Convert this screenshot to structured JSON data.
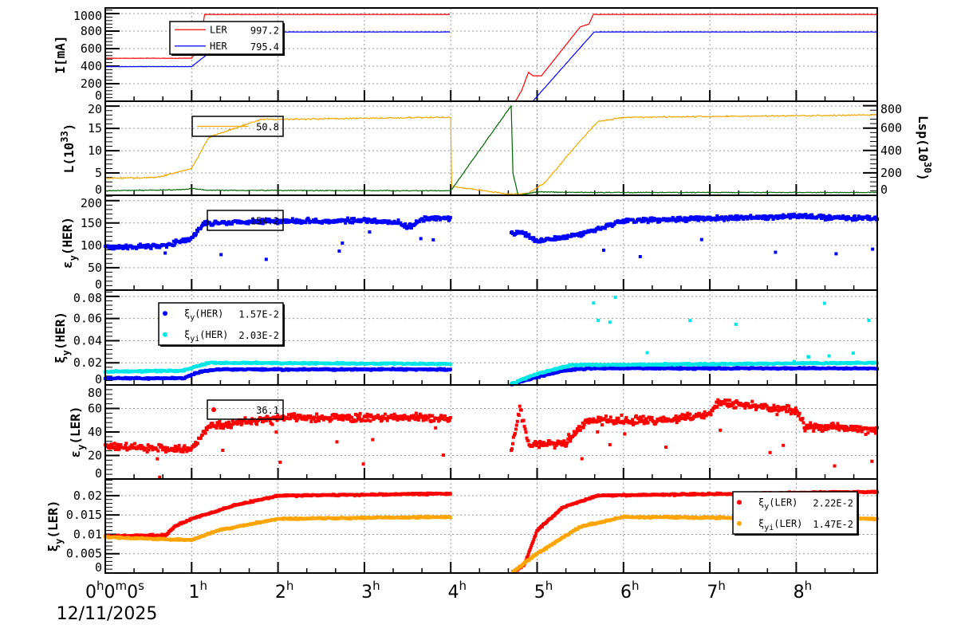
{
  "chart_data": {
    "type": "multi-panel time series",
    "x_axis": {
      "unit": "hours",
      "range": [
        0,
        8.94
      ],
      "tick_labels": [
        {
          "h": "0",
          "m": "0",
          "s": "0"
        },
        {
          "h": "1"
        },
        {
          "h": "2"
        },
        {
          "h": "3"
        },
        {
          "h": "4"
        },
        {
          "h": "5"
        },
        {
          "h": "6"
        },
        {
          "h": "7"
        },
        {
          "h": "8"
        }
      ],
      "date": "12/11/2025",
      "grid": true
    },
    "panels": [
      {
        "ylabel": {
          "main": "I[mA]",
          "sub": "",
          "sup": "",
          "rest": ""
        },
        "ylim": [
          0,
          1064
        ],
        "yticks": [
          "0",
          "200",
          "400",
          "600",
          "800",
          "1000"
        ],
        "ytick_step": 200,
        "legend": {
          "entries": [
            {
              "name": "LER",
              "value": "997.2",
              "color": "#ff0000",
              "style": "line"
            },
            {
              "name": "HER",
              "value": "795.4",
              "color": "#0000ff",
              "style": "line"
            }
          ]
        },
        "series": [
          {
            "name": "LER",
            "kind": "line",
            "color": "#ff0000",
            "segments": [
              [
                [
                  0,
                  490
                ],
                [
                  1,
                  490
                ],
                [
                  1.05,
                  560
                ],
                [
                  1.1,
                  720
                ],
                [
                  1.12,
                  800
                ],
                [
                  1.15,
                  990
                ],
                [
                  3.999,
                  990
                ]
              ],
              [
                [
                  4.001,
                  0
                ],
                [
                  4.75,
                  0
                ],
                [
                  4.82,
                  120
                ],
                [
                  4.9,
                  330
                ],
                [
                  4.95,
                  290
                ],
                [
                  5.05,
                  290
                ],
                [
                  5.3,
                  600
                ],
                [
                  5.5,
                  850
                ],
                [
                  5.6,
                  880
                ],
                [
                  5.65,
                  990
                ],
                [
                  8.94,
                  990
                ]
              ]
            ]
          },
          {
            "name": "HER",
            "kind": "line",
            "color": "#0000ff",
            "segments": [
              [
                [
                  0,
                  395
                ],
                [
                  1,
                  395
                ],
                [
                  1.2,
                  550
                ],
                [
                  1.6,
                  700
                ],
                [
                  2,
                  790
                ],
                [
                  3.999,
                  790
                ]
              ],
              [
                [
                  4.001,
                  0
                ],
                [
                  4.95,
                  0
                ],
                [
                  5.66,
                  790
                ],
                [
                  8.94,
                  790
                ]
              ]
            ]
          }
        ]
      },
      {
        "ylabel": {
          "main": "L(10",
          "sub": "",
          "sup": "33",
          "rest": ")"
        },
        "ylim": [
          0,
          21.1
        ],
        "yticks": [
          "0",
          "5",
          "10",
          "15",
          "20"
        ],
        "ytick_step": 5,
        "right_axis": {
          "label": {
            "main": "Lsp(10",
            "sup": "30",
            "rest": ")"
          },
          "ylim": [
            0,
            840
          ],
          "yticks": [
            "0",
            "200",
            "400",
            "600",
            "800"
          ],
          "ytick_step": 200
        },
        "legend": {
          "entries": [
            {
              "name": "",
              "value": "50.8",
              "color": "#f0a800",
              "style": "line"
            }
          ]
        },
        "series": [
          {
            "name": "L",
            "kind": "line",
            "color": "#f0a800",
            "axis": "left",
            "segments": [
              [
                [
                  0,
                  3.8
                ],
                [
                  0.6,
                  4
                ],
                [
                  0.8,
                  5
                ],
                [
                  1,
                  6
                ],
                [
                  1.2,
                  13
                ],
                [
                  1.5,
                  15
                ],
                [
                  1.8,
                  17
                ],
                [
                  4,
                  17.5
                ],
                [
                  4.01,
                  2
                ],
                [
                  4.7,
                  0.2
                ],
                [
                  4.9,
                  0.5
                ],
                [
                  5.1,
                  3
                ],
                [
                  5.4,
                  10
                ],
                [
                  5.7,
                  16.5
                ],
                [
                  6,
                  17.5
                ],
                [
                  8.94,
                  18
                ]
              ]
            ]
          },
          {
            "name": "Lsp",
            "kind": "line",
            "color": "#006400",
            "axis": "right",
            "segments": [
              [
                [
                  0,
                  40
                ],
                [
                  0.9,
                  50
                ],
                [
                  1,
                  60
                ],
                [
                  1.2,
                  45
                ],
                [
                  4,
                  40
                ],
                [
                  4.7,
                  800
                ],
                [
                  4.72,
                  200
                ],
                [
                  4.78,
                  0
                ],
                [
                  5,
                  30
                ],
                [
                  5.6,
                  25
                ],
                [
                  8.94,
                  25
                ]
              ]
            ]
          }
        ]
      },
      {
        "ylabel": {
          "main": "ε",
          "sub": "y",
          "sup": "",
          "rest": "(HER)"
        },
        "ylim": [
          0,
          212
        ],
        "yticks": [
          "0",
          "50",
          "100",
          "150",
          "200"
        ],
        "ytick_step": 50,
        "legend": {
          "entries": [
            {
              "name": "",
              "value": "154.2",
              "color": "#0000ff",
              "style": "none"
            }
          ]
        },
        "series": [
          {
            "name": "εy(HER)",
            "kind": "scatter",
            "color": "#0000ff",
            "segments": [
              [
                [
                  0,
                  95
                ],
                [
                  0.7,
                  100
                ],
                [
                  1,
                  115
                ],
                [
                  1.15,
                  150
                ],
                [
                  2,
                  155
                ],
                [
                  3,
                  155
                ],
                [
                  3.4,
                  150
                ],
                [
                  3.5,
                  140
                ],
                [
                  3.7,
                  160
                ],
                [
                  4,
                  160
                ]
              ],
              [
                [
                  4.7,
                  125
                ],
                [
                  4.8,
                  130
                ],
                [
                  5,
                  110
                ],
                [
                  5.5,
                  125
                ],
                [
                  6,
                  155
                ],
                [
                  8,
                  165
                ],
                [
                  8.94,
                  160
                ]
              ]
            ]
          }
        ]
      },
      {
        "ylabel": {
          "main": "ξ",
          "sub": "y",
          "sup": "",
          "rest": "(HER)"
        },
        "ylim": [
          0,
          0.0857
        ],
        "yticks": [
          "0",
          "0.02",
          "0.04",
          "0.06",
          "0.08"
        ],
        "ytick_step": 0.02,
        "legend": {
          "entries": [
            {
              "name": "ξ",
              "sub": "y",
              "rest": "(HER)",
              "value": "1.57E-2",
              "color": "#0000ff",
              "style": "dot"
            },
            {
              "name": "ξ",
              "sub": "yi",
              "rest": "(HER)",
              "value": "2.03E-2",
              "color": "#00e5e5",
              "style": "dot"
            }
          ]
        },
        "series": [
          {
            "name": "ξy(HER)",
            "kind": "scatter",
            "color": "#0000ff",
            "segments": [
              [
                [
                  0,
                  0.006
                ],
                [
                  0.9,
                  0.006
                ],
                [
                  1.1,
                  0.012
                ],
                [
                  1.3,
                  0.014
                ],
                [
                  4,
                  0.014
                ]
              ],
              [
                [
                  4.7,
                  0.0
                ],
                [
                  4.9,
                  0.005
                ],
                [
                  5.3,
                  0.013
                ],
                [
                  5.6,
                  0.015
                ],
                [
                  8.94,
                  0.015
                ]
              ]
            ]
          },
          {
            "name": "ξyi(HER)",
            "kind": "scatter",
            "color": "#00e5e5",
            "segments": [
              [
                [
                  0,
                  0.012
                ],
                [
                  0.9,
                  0.013
                ],
                [
                  1.2,
                  0.02
                ],
                [
                  4,
                  0.019
                ]
              ],
              [
                [
                  4.7,
                  0.001
                ],
                [
                  5,
                  0.01
                ],
                [
                  5.4,
                  0.018
                ],
                [
                  8.94,
                  0.02
                ]
              ]
            ]
          }
        ]
      },
      {
        "ylabel": {
          "main": "ε",
          "sub": "y",
          "sup": "",
          "rest": "(LER)"
        },
        "ylim": [
          0,
          80
        ],
        "yticks": [
          "0",
          "20",
          "40",
          "60",
          "80"
        ],
        "ytick_step": 20,
        "legend": {
          "entries": [
            {
              "name": "",
              "value": "36.1",
              "color": "#ff0000",
              "style": "dot"
            }
          ]
        },
        "series": [
          {
            "name": "εy(LER)",
            "kind": "scatter",
            "color": "#ff0000",
            "segments": [
              [
                [
                  0,
                  28
                ],
                [
                  1,
                  25
                ],
                [
                  1.2,
                  45
                ],
                [
                  2,
                  52
                ],
                [
                  3,
                  52
                ],
                [
                  4,
                  52
                ]
              ],
              [
                [
                  4.7,
                  25
                ],
                [
                  4.8,
                  60
                ],
                [
                  4.9,
                  30
                ],
                [
                  5.3,
                  30
                ],
                [
                  5.6,
                  50
                ],
                [
                  6.5,
                  50
                ],
                [
                  7,
                  55
                ],
                [
                  7.1,
                  65
                ],
                [
                  7.5,
                  62
                ],
                [
                  8,
                  58
                ],
                [
                  8.1,
                  45
                ],
                [
                  8.94,
                  42
                ]
              ]
            ]
          }
        ]
      },
      {
        "ylabel": {
          "main": "ξ",
          "sub": "y",
          "sup": "",
          "rest": "(LER)"
        },
        "ylim": [
          0,
          0.0243
        ],
        "yticks": [
          "0",
          "0.005",
          "0.01",
          "0.015",
          "0.02"
        ],
        "ytick_step": 0.005,
        "legend": {
          "entries": [
            {
              "name": "ξ",
              "sub": "y",
              "rest": "(LER)",
              "value": "2.22E-2",
              "color": "#ff0000",
              "style": "dot"
            },
            {
              "name": "ξ",
              "sub": "yi",
              "rest": "(LER)",
              "value": "1.47E-2",
              "color": "#ffa500",
              "style": "dot"
            }
          ]
        },
        "series": [
          {
            "name": "ξy(LER)",
            "kind": "scatter",
            "color": "#ff0000",
            "segments": [
              [
                [
                  0,
                  0.0095
                ],
                [
                  0.7,
                  0.0098
                ],
                [
                  0.8,
                  0.012
                ],
                [
                  1,
                  0.014
                ],
                [
                  1.5,
                  0.0175
                ],
                [
                  2,
                  0.02
                ],
                [
                  4,
                  0.0205
                ]
              ],
              [
                [
                  4.7,
                  0
                ],
                [
                  4.85,
                  0.002
                ],
                [
                  5,
                  0.011
                ],
                [
                  5.3,
                  0.017
                ],
                [
                  5.7,
                  0.02
                ],
                [
                  8.94,
                  0.021
                ]
              ]
            ]
          },
          {
            "name": "ξyi(LER)",
            "kind": "scatter",
            "color": "#ffa500",
            "segments": [
              [
                [
                  0,
                  0.0093
                ],
                [
                  1,
                  0.0085
                ],
                [
                  1.3,
                  0.011
                ],
                [
                  2,
                  0.014
                ],
                [
                  4,
                  0.0145
                ]
              ],
              [
                [
                  4.7,
                  0
                ],
                [
                  5,
                  0.005
                ],
                [
                  5.5,
                  0.012
                ],
                [
                  6,
                  0.0145
                ],
                [
                  8.94,
                  0.014
                ]
              ]
            ]
          }
        ]
      }
    ]
  }
}
